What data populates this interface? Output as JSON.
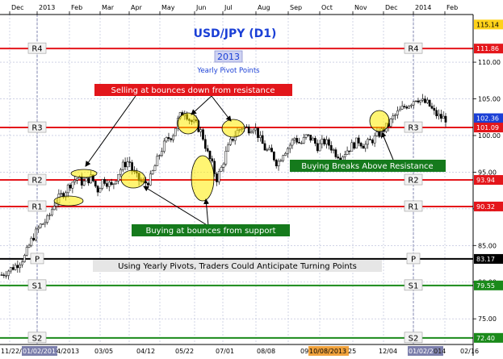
{
  "chart_data": {
    "type": "candlestick",
    "title": "USD/JPY (D1)",
    "year_box": "2013",
    "subtitle": "Yearly Pivot Points",
    "top_axis": [
      "Dec",
      "2013",
      "Feb",
      "Mar",
      "Apr",
      "May",
      "Jun",
      "Jul",
      "Aug",
      "Sep",
      "Oct",
      "Nov",
      "Dec",
      "2014",
      "Feb"
    ],
    "bottom_axis": [
      "11/22/",
      "01/02/2013",
      "4/2013",
      "03/05",
      "04/12",
      "05/22",
      "07/01",
      "08/08",
      "09/1",
      "10/08/2013",
      "25",
      "12/04",
      "01/02/2014",
      "014",
      "02/16"
    ],
    "y_ticks": [
      "110.00",
      "105.00",
      "100.00",
      "95.00",
      "90.00",
      "85.00",
      "80.00",
      "75.00"
    ],
    "y_range": [
      71.5,
      116.5
    ],
    "price_tags": [
      {
        "value": 115.14,
        "text": "115.14",
        "kind": "yellow"
      },
      {
        "value": 111.86,
        "text": "111.86",
        "kind": "red"
      },
      {
        "value": 102.36,
        "text": "102.36",
        "kind": "blue"
      },
      {
        "value": 101.09,
        "text": "101.09",
        "kind": "red"
      },
      {
        "value": 93.94,
        "text": "93.94",
        "kind": "red"
      },
      {
        "value": 90.32,
        "text": "90.32",
        "kind": "red"
      },
      {
        "value": 83.17,
        "text": "83.17",
        "kind": "black"
      },
      {
        "value": 79.55,
        "text": "79.55",
        "kind": "green"
      },
      {
        "value": 72.4,
        "text": "72.40",
        "kind": "green"
      }
    ],
    "pivots": [
      {
        "name": "R4",
        "value": 111.86,
        "color": "#e4161b"
      },
      {
        "name": "R3",
        "value": 101.09,
        "color": "#e4161b"
      },
      {
        "name": "R2",
        "value": 93.94,
        "color": "#e4161b"
      },
      {
        "name": "R1",
        "value": 90.32,
        "color": "#e4161b"
      },
      {
        "name": "P",
        "value": 83.17,
        "color": "#000000"
      },
      {
        "name": "S1",
        "value": 79.55,
        "color": "#1a8a1a"
      },
      {
        "name": "S2",
        "value": 72.4,
        "color": "#1a8a1a"
      }
    ],
    "annotations": {
      "selling": "Selling at bounces down from resistance",
      "breaks": "Buying Breaks Above Resistance",
      "support": "Buying at bounces from support",
      "traders": "Using Yearly Pivots, Traders Could Anticipate Turning Points"
    },
    "price_path": [
      [
        0,
        81.0
      ],
      [
        5,
        82.3
      ],
      [
        8,
        83.5
      ],
      [
        10,
        85.5
      ],
      [
        13,
        87.6
      ],
      [
        16,
        88.6
      ],
      [
        18,
        90.6
      ],
      [
        20,
        91.6
      ],
      [
        22,
        92.5
      ],
      [
        24,
        93.6
      ],
      [
        26,
        94.2
      ],
      [
        28,
        93.5
      ],
      [
        31,
        94.3
      ],
      [
        33,
        92.5
      ],
      [
        35,
        94.1
      ],
      [
        38,
        93.0
      ],
      [
        40,
        94.8
      ],
      [
        42,
        96.0
      ],
      [
        44,
        96.6
      ],
      [
        45,
        95.2
      ],
      [
        47,
        94.0
      ],
      [
        49,
        93.4
      ],
      [
        51,
        93.9
      ],
      [
        53,
        96.0
      ],
      [
        55,
        98.0
      ],
      [
        57,
        99.5
      ],
      [
        59,
        100.1
      ],
      [
        61,
        102.4
      ],
      [
        63,
        103.4
      ],
      [
        65,
        102.0
      ],
      [
        67,
        101.5
      ],
      [
        69,
        100.3
      ],
      [
        71,
        97.5
      ],
      [
        73,
        95.5
      ],
      [
        74,
        94.0
      ],
      [
        76,
        95.8
      ],
      [
        77,
        97.3
      ],
      [
        79,
        99.2
      ],
      [
        81,
        100.5
      ],
      [
        83,
        101.2
      ],
      [
        85,
        100.9
      ],
      [
        87,
        101.3
      ],
      [
        89,
        99.5
      ],
      [
        91,
        98.0
      ],
      [
        93,
        97.6
      ],
      [
        95,
        96.1
      ],
      [
        97,
        97.7
      ],
      [
        99,
        98.5
      ],
      [
        101,
        99.7
      ],
      [
        103,
        98.8
      ],
      [
        105,
        99.9
      ],
      [
        107,
        99.5
      ],
      [
        109,
        98.4
      ],
      [
        111,
        99.2
      ],
      [
        113,
        98.7
      ],
      [
        115,
        97.6
      ],
      [
        117,
        97.2
      ],
      [
        119,
        98.0
      ],
      [
        121,
        98.7
      ],
      [
        123,
        99.3
      ],
      [
        125,
        98.6
      ],
      [
        127,
        99.2
      ],
      [
        129,
        99.8
      ],
      [
        131,
        100.6
      ],
      [
        133,
        101.3
      ],
      [
        135,
        102.5
      ],
      [
        137,
        103.3
      ],
      [
        139,
        104.0
      ],
      [
        141,
        104.5
      ],
      [
        143,
        105.2
      ],
      [
        145,
        104.6
      ],
      [
        147,
        104.3
      ],
      [
        149,
        103.1
      ],
      [
        151,
        102.5
      ],
      [
        153,
        102.3
      ]
    ]
  }
}
